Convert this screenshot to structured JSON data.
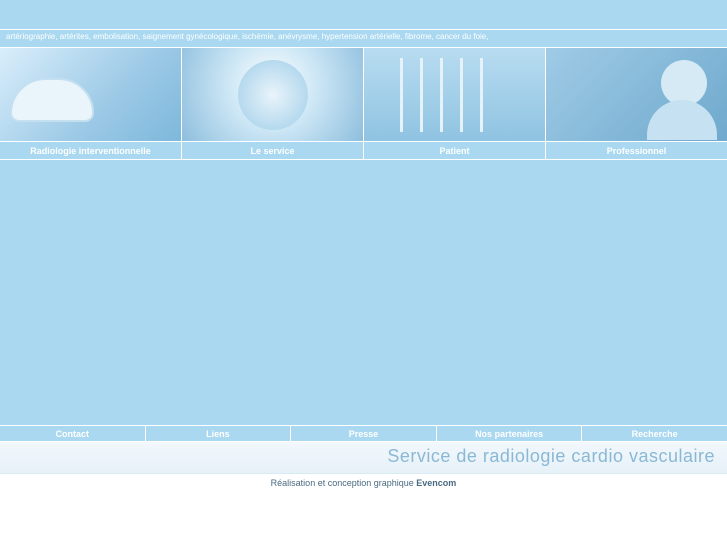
{
  "colors": {
    "page_bg": "#a9d8f0",
    "divider": "#ffffff",
    "nav_text": "#ffffff",
    "brand_text": "#8ab8d5",
    "credit_text": "#4a6a82"
  },
  "keywords_text": "artériographie, artérites, embolisation, saignement gynécologique, ischémie, anévrysme, hypertension artérielle, fibrome, cancer du foie,",
  "main_nav": [
    {
      "label": "Radiologie interventionnelle"
    },
    {
      "label": "Le service"
    },
    {
      "label": "Patient"
    },
    {
      "label": "Professionnel"
    }
  ],
  "sub_nav": [
    {
      "label": "Contact"
    },
    {
      "label": "Liens"
    },
    {
      "label": "Presse"
    },
    {
      "label": "Nos partenaires"
    },
    {
      "label": "Recherche"
    }
  ],
  "brand_title": "Service de radiologie cardio vasculaire",
  "credit": {
    "prefix": "Réalisation et conception graphique ",
    "company": "Evencom"
  }
}
